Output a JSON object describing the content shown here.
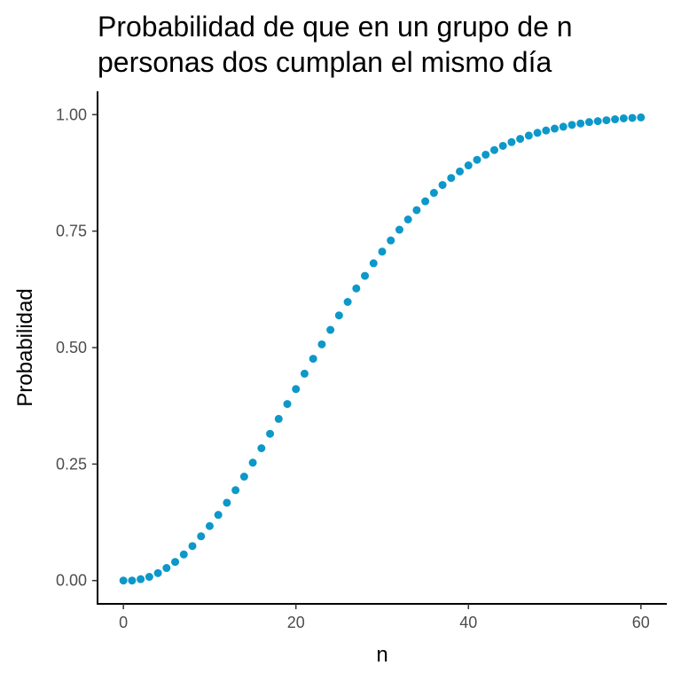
{
  "chart_data": {
    "type": "scatter",
    "title_lines": [
      "Probabilidad de que en un grupo de n",
      "personas dos cumplan el mismo día"
    ],
    "xlabel": "n",
    "ylabel": "Probabilidad",
    "xlim": [
      -3,
      63
    ],
    "ylim": [
      -0.05,
      1.05
    ],
    "x_ticks": [
      0,
      20,
      40,
      60
    ],
    "x_tick_labels": [
      "0",
      "20",
      "40",
      "60"
    ],
    "y_ticks": [
      0,
      0.25,
      0.5,
      0.75,
      1
    ],
    "y_tick_labels": [
      "0.00",
      "0.25",
      "0.50",
      "0.75",
      "1.00"
    ],
    "point_color": "#0d98c9",
    "grid": false,
    "x": [
      0,
      1,
      2,
      3,
      4,
      5,
      6,
      7,
      8,
      9,
      10,
      11,
      12,
      13,
      14,
      15,
      16,
      17,
      18,
      19,
      20,
      21,
      22,
      23,
      24,
      25,
      26,
      27,
      28,
      29,
      30,
      31,
      32,
      33,
      34,
      35,
      36,
      37,
      38,
      39,
      40,
      41,
      42,
      43,
      44,
      45,
      46,
      47,
      48,
      49,
      50,
      51,
      52,
      53,
      54,
      55,
      56,
      57,
      58,
      59,
      60
    ],
    "y": [
      0,
      0,
      0.003,
      0.008,
      0.016,
      0.027,
      0.04,
      0.056,
      0.074,
      0.095,
      0.117,
      0.141,
      0.167,
      0.194,
      0.223,
      0.253,
      0.284,
      0.315,
      0.347,
      0.379,
      0.411,
      0.444,
      0.476,
      0.507,
      0.538,
      0.569,
      0.598,
      0.627,
      0.654,
      0.681,
      0.706,
      0.73,
      0.753,
      0.775,
      0.795,
      0.814,
      0.832,
      0.849,
      0.864,
      0.878,
      0.891,
      0.903,
      0.914,
      0.924,
      0.933,
      0.941,
      0.948,
      0.955,
      0.961,
      0.966,
      0.97,
      0.974,
      0.978,
      0.981,
      0.984,
      0.986,
      0.988,
      0.99,
      0.992,
      0.993,
      0.994
    ]
  }
}
